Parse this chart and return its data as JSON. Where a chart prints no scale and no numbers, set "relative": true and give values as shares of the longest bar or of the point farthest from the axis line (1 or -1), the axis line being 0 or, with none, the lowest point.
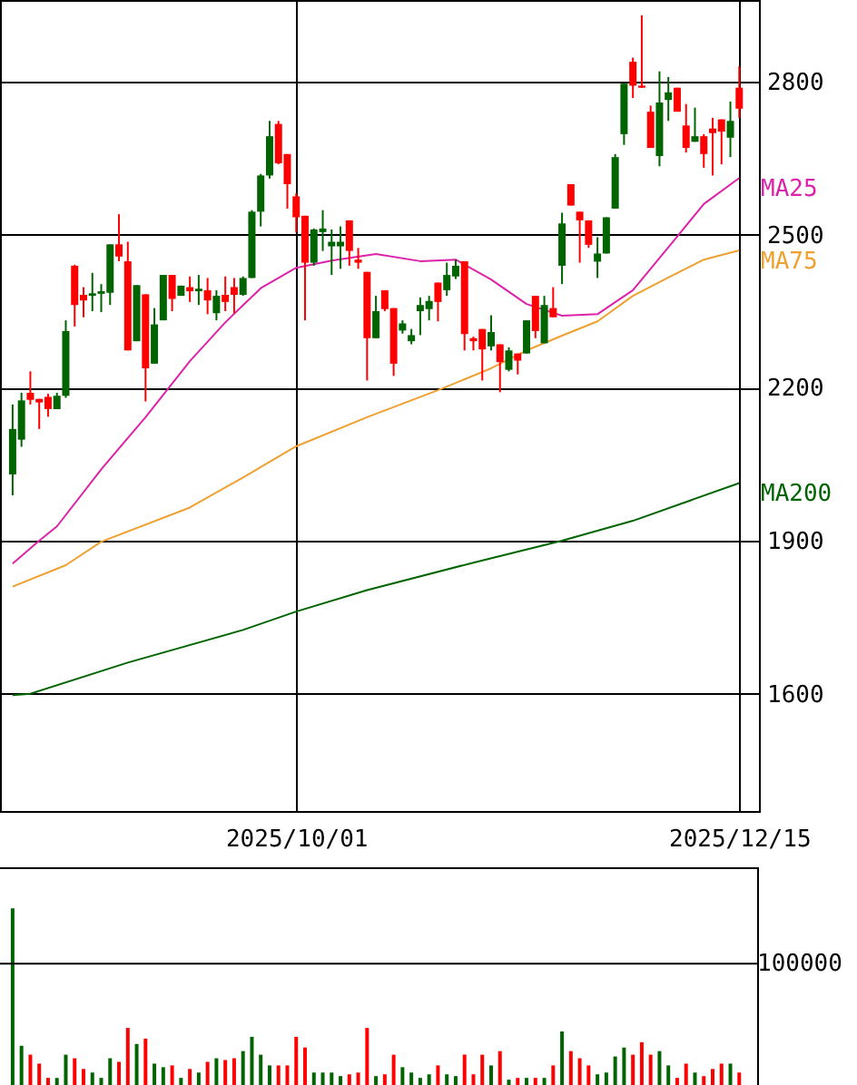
{
  "chart_data": [
    {
      "type": "candlestick",
      "categories": [
        null,
        null,
        null,
        null,
        null,
        null,
        null,
        null,
        null,
        null,
        null,
        null,
        null,
        null,
        null,
        null,
        null,
        null,
        null,
        null,
        null,
        null,
        null,
        null,
        null,
        null,
        null,
        null,
        null,
        null,
        null,
        null,
        "2025/10/01",
        null,
        null,
        null,
        null,
        null,
        null,
        null,
        null,
        null,
        null,
        null,
        null,
        null,
        null,
        null,
        null,
        null,
        null,
        null,
        null,
        null,
        null,
        null,
        null,
        null,
        null,
        null,
        null,
        null,
        null,
        null,
        null,
        null,
        null,
        null,
        null,
        null,
        null,
        null,
        null,
        null,
        null,
        null,
        null,
        null,
        null,
        null,
        null,
        null,
        "2025/12/15"
      ],
      "ohlc": [
        [
          2030,
          2167,
          1989,
          2119
        ],
        [
          2098,
          2190,
          2084,
          2175
        ],
        [
          2190,
          2232,
          2167,
          2176
        ],
        [
          2178,
          2178,
          2119,
          2171
        ],
        [
          2182,
          2188,
          2143,
          2158
        ],
        [
          2158,
          2190,
          2158,
          2184
        ],
        [
          2184,
          2332,
          2180,
          2311
        ],
        [
          2439,
          2441,
          2320,
          2362
        ],
        [
          2382,
          2397,
          2338,
          2371
        ],
        [
          2380,
          2425,
          2350,
          2385
        ],
        [
          2384,
          2403,
          2348,
          2389
        ],
        [
          2386,
          2481,
          2362,
          2481
        ],
        [
          2481,
          2540,
          2448,
          2457
        ],
        [
          2448,
          2486,
          2273,
          2273
        ],
        [
          2291,
          2401,
          2291,
          2401
        ],
        [
          2383,
          2383,
          2173,
          2238
        ],
        [
          2247,
          2356,
          2247,
          2324
        ],
        [
          2332,
          2421,
          2332,
          2421
        ],
        [
          2421,
          2421,
          2350,
          2374
        ],
        [
          2380,
          2400,
          2380,
          2400
        ],
        [
          2397,
          2418,
          2368,
          2389
        ],
        [
          2389,
          2421,
          2362,
          2394
        ],
        [
          2391,
          2415,
          2344,
          2371
        ],
        [
          2346,
          2391,
          2332,
          2380
        ],
        [
          2382,
          2418,
          2350,
          2368
        ],
        [
          2397,
          2415,
          2346,
          2382
        ],
        [
          2382,
          2418,
          2380,
          2415
        ],
        [
          2415,
          2548,
          2415,
          2545
        ],
        [
          2545,
          2619,
          2516,
          2616
        ],
        [
          2616,
          2723,
          2610,
          2693
        ],
        [
          2717,
          2723,
          2638,
          2640
        ],
        [
          2658,
          2658,
          2551,
          2599
        ],
        [
          2575,
          2581,
          2504,
          2534
        ],
        [
          2537,
          2537,
          2332,
          2445
        ],
        [
          2445,
          2512,
          2439,
          2510
        ],
        [
          2505,
          2548,
          2468,
          2512
        ],
        [
          2477,
          2510,
          2421,
          2486
        ],
        [
          2477,
          2516,
          2433,
          2486
        ],
        [
          2528,
          2528,
          2439,
          2468
        ],
        [
          2451,
          2474,
          2433,
          2445
        ],
        [
          2427,
          2427,
          2214,
          2297
        ],
        [
          2297,
          2380,
          2297,
          2350
        ],
        [
          2391,
          2391,
          2350,
          2354
        ],
        [
          2356,
          2356,
          2223,
          2247
        ],
        [
          2312,
          2332,
          2306,
          2326
        ],
        [
          2291,
          2315,
          2285,
          2303
        ],
        [
          2350,
          2377,
          2303,
          2362
        ],
        [
          2354,
          2380,
          2332,
          2370
        ],
        [
          2406,
          2406,
          2330,
          2368
        ],
        [
          2391,
          2445,
          2380,
          2421
        ],
        [
          2418,
          2451,
          2413,
          2439
        ],
        [
          2448,
          2448,
          2273,
          2305
        ],
        [
          2297,
          2300,
          2273,
          2291
        ],
        [
          2315,
          2315,
          2214,
          2275
        ],
        [
          2281,
          2342,
          2273,
          2309
        ],
        [
          2285,
          2285,
          2191,
          2250
        ],
        [
          2235,
          2279,
          2232,
          2273
        ],
        [
          2267,
          2267,
          2226,
          2253
        ],
        [
          2267,
          2332,
          2267,
          2332
        ],
        [
          2380,
          2380,
          2297,
          2311
        ],
        [
          2287,
          2380,
          2287,
          2362
        ],
        [
          2356,
          2397,
          2338,
          2338
        ],
        [
          2439,
          2543,
          2403,
          2522
        ],
        [
          2599,
          2599,
          2557,
          2557
        ],
        [
          2545,
          2545,
          2445,
          2528
        ],
        [
          2528,
          2528,
          2474,
          2480
        ],
        [
          2447,
          2495,
          2415,
          2463
        ],
        [
          2463,
          2534,
          2463,
          2534
        ],
        [
          2551,
          2658,
          2551,
          2652
        ],
        [
          2697,
          2796,
          2676,
          2796
        ],
        [
          2839,
          2847,
          2768,
          2792
        ],
        [
          2792,
          2930,
          2788,
          2788
        ],
        [
          2741,
          2753,
          2670,
          2670
        ],
        [
          2654,
          2820,
          2634,
          2759
        ],
        [
          2764,
          2809,
          2723,
          2779
        ],
        [
          2788,
          2788,
          2741,
          2741
        ],
        [
          2714,
          2756,
          2661,
          2670
        ],
        [
          2682,
          2749,
          2682,
          2693
        ],
        [
          2693,
          2697,
          2631,
          2658
        ],
        [
          2708,
          2729,
          2616,
          2699
        ],
        [
          2726,
          2726,
          2638,
          2702
        ],
        [
          2690,
          2761,
          2652,
          2723
        ],
        [
          2788,
          2830,
          2729,
          2747
        ]
      ],
      "colors": [
        "#006400",
        "#006400",
        "#ff0000",
        "#ff0000",
        "#ff0000",
        "#006400",
        "#006400",
        "#ff0000",
        "#ff0000",
        "#006400",
        "#006400",
        "#006400",
        "#ff0000",
        "#ff0000",
        "#006400",
        "#ff0000",
        "#006400",
        "#006400",
        "#ff0000",
        "#006400",
        "#ff0000",
        "#006400",
        "#ff0000",
        "#006400",
        "#ff0000",
        "#ff0000",
        "#006400",
        "#006400",
        "#006400",
        "#006400",
        "#ff0000",
        "#ff0000",
        "#ff0000",
        "#ff0000",
        "#006400",
        "#006400",
        "#006400",
        "#006400",
        "#ff0000",
        "#ff0000",
        "#ff0000",
        "#006400",
        "#ff0000",
        "#ff0000",
        "#006400",
        "#006400",
        "#006400",
        "#006400",
        "#ff0000",
        "#006400",
        "#006400",
        "#ff0000",
        "#ff0000",
        "#ff0000",
        "#006400",
        "#ff0000",
        "#006400",
        "#ff0000",
        "#006400",
        "#ff0000",
        "#006400",
        "#ff0000",
        "#006400",
        "#ff0000",
        "#ff0000",
        "#ff0000",
        "#006400",
        "#006400",
        "#006400",
        "#006400",
        "#ff0000",
        "#ff0000",
        "#ff0000",
        "#006400",
        "#006400",
        "#ff0000",
        "#ff0000",
        "#006400",
        "#ff0000",
        "#ff0000",
        "#ff0000",
        "#006400",
        "#ff0000"
      ],
      "series": [
        {
          "name": "MA25",
          "type": "line",
          "color": "#dd22aa",
          "values": [
            1855,
            null,
            null,
            1900,
            null,
            1928,
            null,
            null,
            null,
            null,
            2040,
            null,
            null,
            null,
            null,
            2142,
            null,
            null,
            null,
            null,
            2252,
            null,
            null,
            null,
            2328,
            null,
            null,
            null,
            2395,
            null,
            null,
            null,
            2435,
            null,
            null,
            null,
            2449,
            null,
            null,
            null,
            null,
            2462,
            null,
            null,
            null,
            null,
            2448,
            null,
            null,
            null,
            2451,
            null,
            null,
            null,
            2412,
            null,
            null,
            null,
            2364,
            null,
            null,
            null,
            2341,
            null,
            null,
            null,
            2344,
            null,
            null,
            null,
            2391,
            null,
            null,
            null,
            2475,
            null,
            null,
            null,
            2560,
            null,
            null,
            null,
            2611
          ]
        },
        {
          "name": "MA75",
          "type": "line",
          "color": "#f0a030",
          "values": [
            1810,
            null,
            null,
            null,
            null,
            null,
            1852,
            null,
            null,
            null,
            1898,
            null,
            null,
            null,
            null,
            null,
            null,
            null,
            null,
            null,
            1965,
            null,
            null,
            null,
            null,
            null,
            2024,
            null,
            null,
            null,
            null,
            null,
            2085,
            null,
            null,
            null,
            null,
            null,
            null,
            null,
            2142,
            null,
            null,
            null,
            null,
            null,
            null,
            null,
            2195,
            null,
            null,
            null,
            null,
            null,
            2238,
            null,
            null,
            null,
            2273,
            null,
            null,
            null,
            2302,
            null,
            null,
            null,
            2330,
            null,
            null,
            null,
            2380,
            null,
            null,
            null,
            2416,
            null,
            null,
            null,
            2451,
            null,
            null,
            null,
            2469
          ]
        },
        {
          "name": "MA200",
          "type": "line",
          "color": "#006400",
          "values": [
            1597,
            null,
            1600,
            null,
            null,
            null,
            null,
            null,
            null,
            null,
            null,
            null,
            null,
            1661,
            null,
            null,
            null,
            null,
            null,
            null,
            null,
            null,
            null,
            null,
            null,
            null,
            1725,
            null,
            null,
            null,
            null,
            null,
            1761,
            null,
            null,
            null,
            null,
            null,
            null,
            null,
            1803,
            null,
            null,
            null,
            null,
            null,
            null,
            null,
            null,
            null,
            null,
            null,
            1857,
            null,
            null,
            null,
            null,
            null,
            null,
            null,
            null,
            null,
            1900,
            null,
            null,
            null,
            null,
            null,
            null,
            null,
            1939,
            null,
            null,
            null,
            null,
            null,
            null,
            null,
            null,
            null,
            null,
            null,
            2013
          ]
        }
      ],
      "ylim": [
        1370,
        2960
      ],
      "yticks": [
        1600,
        1900,
        2200,
        2500,
        2800
      ],
      "grid": true
    },
    {
      "type": "bar",
      "relative": true,
      "categories": [
        null,
        null,
        null,
        null,
        null,
        null,
        null,
        null,
        null,
        null,
        null,
        null,
        null,
        null,
        null,
        null,
        null,
        null,
        null,
        null,
        null,
        null,
        null,
        null,
        null,
        null,
        null,
        null,
        null,
        null,
        null,
        null,
        null,
        null,
        null,
        null,
        null,
        null,
        null,
        null,
        null,
        null,
        null,
        null,
        null,
        null,
        null,
        null,
        null,
        null,
        null,
        null,
        null,
        null,
        null,
        null,
        null,
        null,
        null,
        null,
        null,
        null,
        null,
        null,
        null,
        null,
        null,
        null,
        null,
        null,
        null,
        null,
        null,
        null,
        null,
        null,
        null,
        null,
        null,
        null,
        null,
        null,
        null
      ],
      "values": [
        1.0,
        0.23,
        0.18,
        0.13,
        0.05,
        0.05,
        0.18,
        0.16,
        0.1,
        0.08,
        0.05,
        0.16,
        0.14,
        0.33,
        0.24,
        0.27,
        0.13,
        0.11,
        0.12,
        0.05,
        0.1,
        0.08,
        0.14,
        0.16,
        0.15,
        0.16,
        0.2,
        0.28,
        0.18,
        0.12,
        0.12,
        0.12,
        0.28,
        0.22,
        0.08,
        0.08,
        0.08,
        0.06,
        0.07,
        0.08,
        0.33,
        0.06,
        0.07,
        0.18,
        0.11,
        0.08,
        0.05,
        0.07,
        0.12,
        0.07,
        0.06,
        0.18,
        0.07,
        0.18,
        0.12,
        0.2,
        0.04,
        0.05,
        0.05,
        0.05,
        0.05,
        0.12,
        0.31,
        0.2,
        0.16,
        0.12,
        0.07,
        0.08,
        0.17,
        0.22,
        0.18,
        0.25,
        0.18,
        0.2,
        0.12,
        0.05,
        0.13,
        0.08,
        0.06,
        0.1,
        0.13,
        0.13,
        0.08
      ],
      "colors": [
        "#006400",
        "#006400",
        "#ff0000",
        "#ff0000",
        "#ff0000",
        "#006400",
        "#006400",
        "#ff0000",
        "#ff0000",
        "#006400",
        "#006400",
        "#006400",
        "#ff0000",
        "#ff0000",
        "#006400",
        "#ff0000",
        "#006400",
        "#006400",
        "#ff0000",
        "#006400",
        "#ff0000",
        "#006400",
        "#ff0000",
        "#006400",
        "#ff0000",
        "#ff0000",
        "#006400",
        "#006400",
        "#006400",
        "#006400",
        "#ff0000",
        "#ff0000",
        "#ff0000",
        "#ff0000",
        "#006400",
        "#006400",
        "#006400",
        "#006400",
        "#ff0000",
        "#ff0000",
        "#ff0000",
        "#006400",
        "#ff0000",
        "#ff0000",
        "#006400",
        "#006400",
        "#006400",
        "#006400",
        "#ff0000",
        "#006400",
        "#006400",
        "#ff0000",
        "#ff0000",
        "#ff0000",
        "#006400",
        "#ff0000",
        "#006400",
        "#ff0000",
        "#006400",
        "#ff0000",
        "#006400",
        "#ff0000",
        "#006400",
        "#ff0000",
        "#ff0000",
        "#ff0000",
        "#006400",
        "#006400",
        "#006400",
        "#006400",
        "#ff0000",
        "#ff0000",
        "#ff0000",
        "#006400",
        "#006400",
        "#ff0000",
        "#ff0000",
        "#006400",
        "#ff0000",
        "#ff0000",
        "#ff0000",
        "#006400",
        "#ff0000"
      ],
      "ref_lines": [
        {
          "axis": "y",
          "value": 0.69
        }
      ],
      "annotations": [
        "100000"
      ]
    }
  ]
}
